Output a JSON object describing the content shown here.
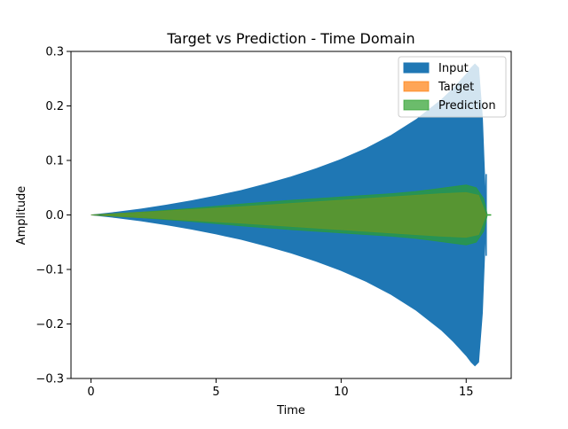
{
  "chart_data": {
    "type": "area",
    "title": "Target vs Prediction - Time Domain",
    "xlabel": "Time",
    "ylabel": "Amplitude",
    "xlim": [
      -0.8,
      16.8
    ],
    "ylim": [
      -0.3,
      0.3
    ],
    "xticks": [
      0,
      5,
      10,
      15
    ],
    "xtick_labels": [
      "0",
      "5",
      "10",
      "15"
    ],
    "yticks": [
      0.3,
      0.2,
      0.1,
      0.0,
      -0.1,
      -0.2,
      -0.3
    ],
    "ytick_labels": [
      "0.3",
      "0.2",
      "0.1",
      "0.0",
      "−0.1",
      "−0.2",
      "−0.3"
    ],
    "legend_position": "top-right",
    "series": [
      {
        "name": "Input",
        "color": "#1f77b4",
        "x": [
          0,
          1,
          2,
          3,
          4,
          5,
          6,
          7,
          8,
          9,
          10,
          11,
          12,
          13,
          14,
          14.5,
          15,
          15.2,
          15.35,
          15.5,
          15.65,
          15.8
        ],
        "upper": [
          0,
          0.005,
          0.011,
          0.018,
          0.026,
          0.035,
          0.045,
          0.057,
          0.07,
          0.085,
          0.102,
          0.122,
          0.146,
          0.175,
          0.211,
          0.233,
          0.258,
          0.27,
          0.277,
          0.27,
          0.18,
          0.0
        ],
        "lower": [
          0,
          -0.005,
          -0.011,
          -0.018,
          -0.026,
          -0.035,
          -0.045,
          -0.057,
          -0.07,
          -0.085,
          -0.102,
          -0.122,
          -0.146,
          -0.175,
          -0.211,
          -0.233,
          -0.258,
          -0.27,
          -0.277,
          -0.27,
          -0.18,
          0.0
        ],
        "spikes": [
          {
            "x": 15.8,
            "top": 0.075,
            "bottom": -0.075
          }
        ]
      },
      {
        "name": "Target",
        "color": "#ff7f0e",
        "x": [
          0,
          2,
          4,
          6,
          8,
          10,
          12,
          14,
          15,
          15.5,
          15.8
        ],
        "upper": [
          0,
          0.005,
          0.01,
          0.015,
          0.021,
          0.027,
          0.033,
          0.039,
          0.041,
          0.036,
          0.0
        ],
        "lower": [
          0,
          -0.005,
          -0.01,
          -0.015,
          -0.021,
          -0.027,
          -0.033,
          -0.039,
          -0.041,
          -0.036,
          0.0
        ]
      },
      {
        "name": "Prediction",
        "color": "#2ca02c",
        "x": [
          0,
          2,
          4,
          6,
          8,
          10,
          12,
          13,
          14,
          15,
          15.4,
          15.7,
          15.85
        ],
        "upper": [
          0,
          0.005,
          0.012,
          0.02,
          0.027,
          0.033,
          0.039,
          0.043,
          0.049,
          0.055,
          0.05,
          0.03,
          0.0
        ],
        "lower": [
          0,
          -0.005,
          -0.012,
          -0.02,
          -0.027,
          -0.033,
          -0.039,
          -0.043,
          -0.049,
          -0.055,
          -0.05,
          -0.03,
          0.0
        ],
        "tail": {
          "x": [
            15.85,
            16.0
          ],
          "y": 0.0
        }
      }
    ]
  }
}
